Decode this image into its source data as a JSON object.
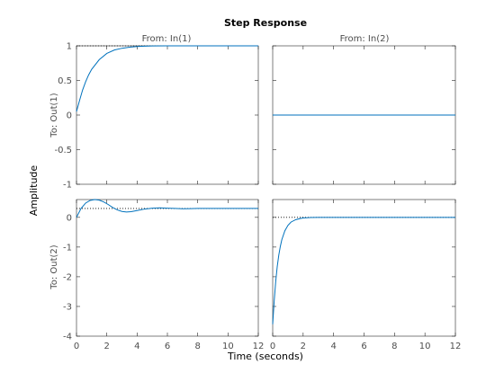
{
  "chart_data": {
    "type": "line",
    "title": "Step Response",
    "xlabel": "Time (seconds)",
    "ylabel": "Amplitude",
    "grid": false,
    "colors": {
      "response": "#0072bd",
      "steady_state": "#000000",
      "axes": "#262626",
      "labels": "#4d4d4d"
    },
    "columns": [
      "From: In(1)",
      "From: In(2)"
    ],
    "rows": [
      "To: Out(1)",
      "To: Out(2)"
    ],
    "xlim": [
      0,
      12
    ],
    "xticks": [
      0,
      2,
      4,
      6,
      8,
      10,
      12
    ],
    "row_ylims": [
      [
        -1,
        1
      ],
      [
        -4,
        0.6
      ]
    ],
    "row_yticks": [
      [
        "1",
        "0.5",
        "0",
        "-0.5",
        "-1"
      ],
      [
        "0",
        "-1",
        "-2",
        "-3",
        "-4"
      ]
    ],
    "panels": [
      {
        "row": 0,
        "col": 0,
        "steady_state": 1,
        "series": {
          "x": [
            0,
            0.2,
            0.4,
            0.6,
            0.8,
            1.0,
            1.5,
            2.0,
            2.5,
            3.0,
            3.5,
            4.0,
            4.5,
            5.0,
            6.0,
            8.0,
            10.0,
            12.0
          ],
          "y": [
            0.05,
            0.21,
            0.36,
            0.48,
            0.58,
            0.66,
            0.8,
            0.89,
            0.94,
            0.965,
            0.98,
            0.99,
            0.995,
            0.998,
            1.0,
            1.0,
            1.0,
            1.0
          ]
        }
      },
      {
        "row": 0,
        "col": 1,
        "steady_state": 0,
        "series": {
          "x": [
            0,
            12
          ],
          "y": [
            0,
            0
          ]
        }
      },
      {
        "row": 1,
        "col": 0,
        "steady_state": 0.3,
        "series": {
          "x": [
            0,
            0.3,
            0.6,
            0.9,
            1.2,
            1.5,
            1.8,
            2.1,
            2.4,
            2.7,
            3.0,
            3.3,
            3.6,
            4.0,
            4.5,
            5.0,
            5.5,
            6.0,
            6.5,
            7.0,
            7.5,
            8.0,
            9.0,
            10.0,
            12.0
          ],
          "y": [
            0.0,
            0.3,
            0.48,
            0.57,
            0.6,
            0.58,
            0.52,
            0.43,
            0.33,
            0.25,
            0.2,
            0.18,
            0.19,
            0.23,
            0.28,
            0.31,
            0.32,
            0.31,
            0.3,
            0.29,
            0.295,
            0.3,
            0.3,
            0.3,
            0.3
          ]
        }
      },
      {
        "row": 1,
        "col": 1,
        "steady_state": 0,
        "series": {
          "x": [
            0,
            0.1,
            0.2,
            0.3,
            0.4,
            0.5,
            0.6,
            0.8,
            1.0,
            1.2,
            1.5,
            1.8,
            2.0,
            2.5,
            3.0,
            4.0,
            6.0,
            8.0,
            12.0
          ],
          "y": [
            -3.6,
            -2.8,
            -2.15,
            -1.65,
            -1.27,
            -0.98,
            -0.75,
            -0.45,
            -0.27,
            -0.16,
            -0.08,
            -0.04,
            -0.02,
            -0.005,
            0.0,
            0.0,
            0.0,
            0.0,
            0.0
          ]
        }
      }
    ]
  }
}
